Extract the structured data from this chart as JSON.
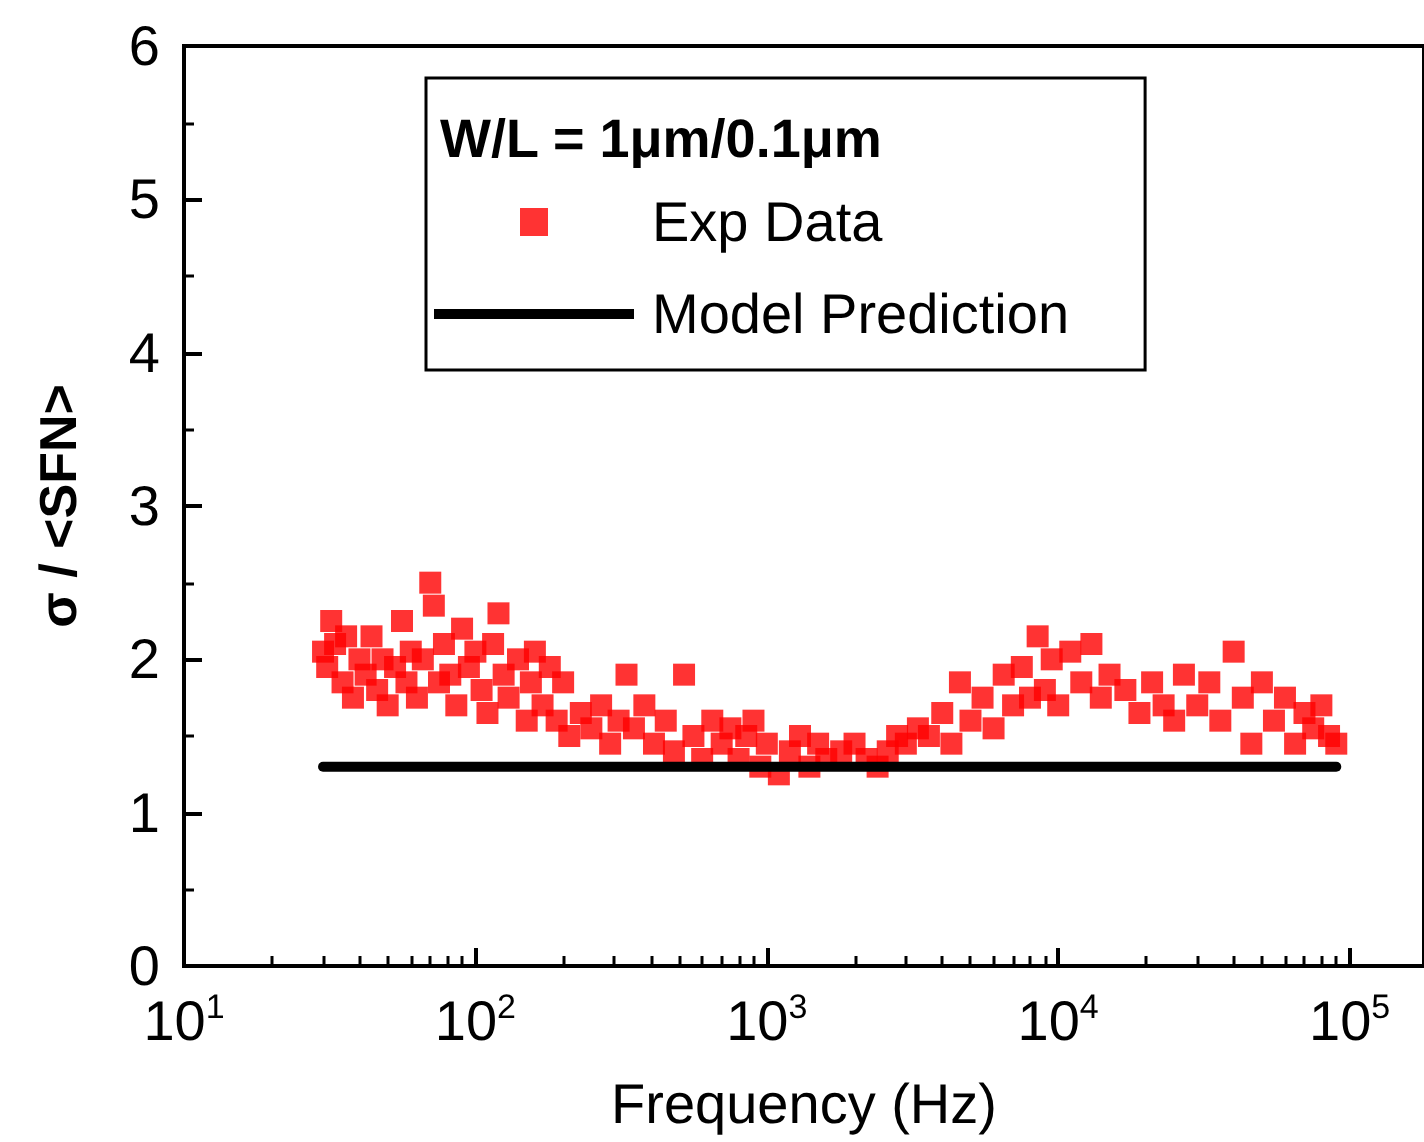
{
  "chart_data": {
    "type": "scatter",
    "xlabel": "Frequency (Hz)",
    "ylabel": "σ / <SFN>",
    "legend_title": "W/L = 1μm/0.1μm",
    "log": "x",
    "grid": false,
    "legend": "top",
    "marker": "square",
    "xlim": [
      10,
      180000
    ],
    "ylim": [
      0,
      6
    ],
    "xticks": [
      {
        "value": 10,
        "label": "10$^{1}$"
      },
      {
        "value": 100,
        "label": "10$^{2}$"
      },
      {
        "value": 1000,
        "label": "10$^{3}$"
      },
      {
        "value": 10000,
        "label": "10$^{4}$"
      },
      {
        "value": 100000,
        "label": "10$^{5}$"
      }
    ],
    "yticks": [
      0,
      1,
      2,
      3,
      4,
      5,
      6
    ],
    "series": [
      {
        "name": "Exp Data",
        "color": "#ff0000",
        "x": [
          30,
          31,
          32,
          33,
          35,
          36,
          38,
          40,
          42,
          44,
          46,
          48,
          50,
          53,
          56,
          58,
          60,
          63,
          66,
          70,
          72,
          75,
          78,
          82,
          86,
          90,
          95,
          100,
          105,
          110,
          115,
          120,
          125,
          130,
          140,
          150,
          155,
          160,
          170,
          180,
          190,
          200,
          210,
          230,
          250,
          270,
          290,
          310,
          330,
          350,
          380,
          410,
          450,
          480,
          520,
          560,
          600,
          650,
          700,
          750,
          800,
          850,
          900,
          950,
          1000,
          1100,
          1200,
          1300,
          1400,
          1500,
          1600,
          1800,
          2000,
          2200,
          2400,
          2600,
          2800,
          3000,
          3300,
          3600,
          4000,
          4300,
          4600,
          5000,
          5500,
          6000,
          6500,
          7000,
          7500,
          8000,
          8500,
          9000,
          9500,
          10000,
          11000,
          12000,
          13000,
          14000,
          15000,
          17000,
          19000,
          21000,
          23000,
          25000,
          27000,
          30000,
          33000,
          36000,
          40000,
          43000,
          46000,
          50000,
          55000,
          60000,
          65000,
          70000,
          75000,
          80000,
          85000,
          90000
        ],
        "values": [
          2.05,
          1.95,
          2.25,
          2.1,
          1.85,
          2.15,
          1.75,
          2.0,
          1.9,
          2.15,
          1.8,
          2.0,
          1.7,
          1.95,
          2.25,
          1.85,
          2.05,
          1.75,
          2.0,
          2.5,
          2.35,
          1.85,
          2.1,
          1.9,
          1.7,
          2.2,
          1.95,
          2.05,
          1.8,
          1.65,
          2.1,
          2.3,
          1.9,
          1.75,
          2.0,
          1.6,
          1.85,
          2.05,
          1.7,
          1.95,
          1.6,
          1.85,
          1.5,
          1.65,
          1.55,
          1.7,
          1.45,
          1.6,
          1.9,
          1.55,
          1.7,
          1.45,
          1.6,
          1.4,
          1.9,
          1.5,
          1.35,
          1.6,
          1.45,
          1.55,
          1.35,
          1.5,
          1.6,
          1.3,
          1.45,
          1.25,
          1.4,
          1.5,
          1.3,
          1.45,
          1.35,
          1.4,
          1.45,
          1.35,
          1.3,
          1.4,
          1.5,
          1.45,
          1.55,
          1.5,
          1.65,
          1.45,
          1.85,
          1.6,
          1.75,
          1.55,
          1.9,
          1.7,
          1.95,
          1.75,
          2.15,
          1.8,
          2.0,
          1.7,
          2.05,
          1.85,
          2.1,
          1.75,
          1.9,
          1.8,
          1.65,
          1.85,
          1.7,
          1.6,
          1.9,
          1.7,
          1.85,
          1.6,
          2.05,
          1.75,
          1.45,
          1.85,
          1.6,
          1.75,
          1.45,
          1.65,
          1.55,
          1.7,
          1.5,
          1.45
        ]
      },
      {
        "name": "Model Prediction",
        "color": "#000000",
        "type": "line",
        "marker": "none",
        "line_style": "solid",
        "x": [
          30,
          90000
        ],
        "values": [
          1.3,
          1.3
        ]
      }
    ]
  }
}
